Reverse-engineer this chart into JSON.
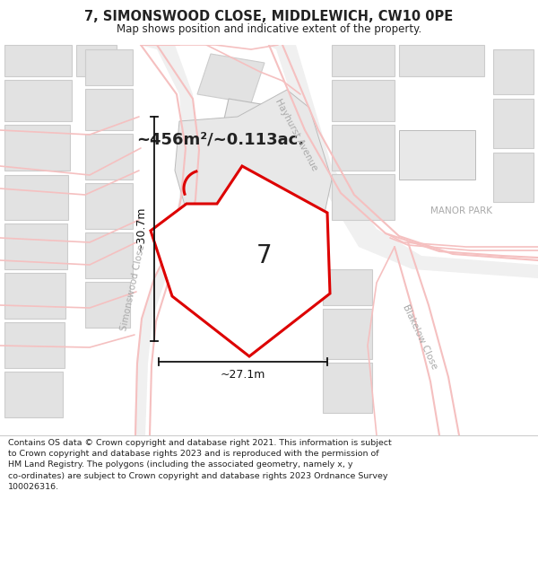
{
  "title_line1": "7, SIMONSWOOD CLOSE, MIDDLEWICH, CW10 0PE",
  "title_line2": "Map shows position and indicative extent of the property.",
  "footer_text": "Contains OS data © Crown copyright and database right 2021. This information is subject\nto Crown copyright and database rights 2023 and is reproduced with the permission of\nHM Land Registry. The polygons (including the associated geometry, namely x, y\nco-ordinates) are subject to Crown copyright and database rights 2023 Ordnance Survey\n100026316.",
  "area_text": "~456m²/~0.113ac.",
  "number_label": "7",
  "dim_height": "~30.7m",
  "dim_width": "~27.1m",
  "manor_park": "MANOR PARK",
  "street1": "Simonswood Close",
  "street2": "Hayhurst Avenue",
  "street3": "Blakelow Close",
  "bg_color": "#ffffff",
  "map_bg": "#f8f8f8",
  "road_color_light": "#f5c0c0",
  "road_color_dark": "#e8a0a0",
  "road_fill": "#f0f0f0",
  "block_fill": "#e2e2e2",
  "block_stroke": "#cccccc",
  "large_block_fill": "#e8e8e8",
  "large_block_stroke": "#bbbbbb",
  "plot_fill": "#ffffff",
  "plot_stroke": "#dd0000",
  "dim_color": "#111111",
  "street_label_color": "#aaaaaa",
  "text_color": "#222222"
}
